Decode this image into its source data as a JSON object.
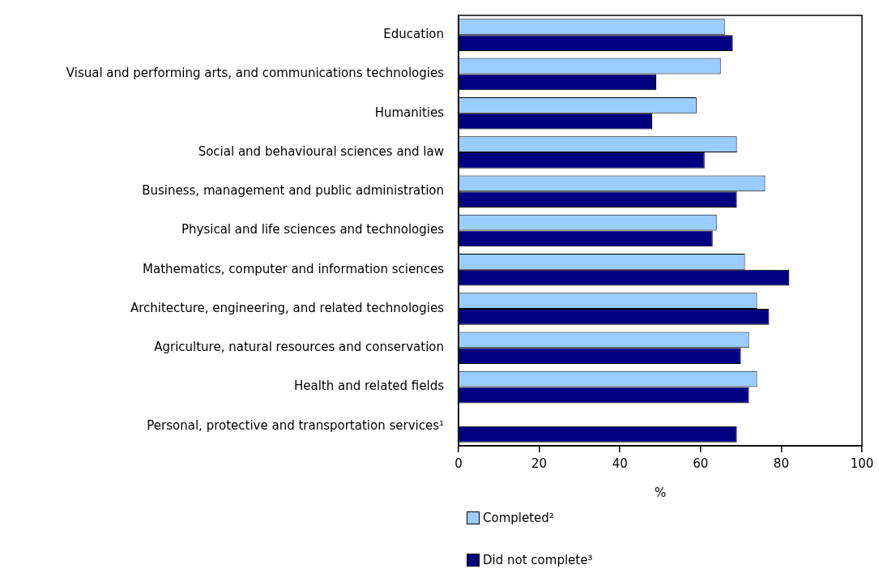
{
  "chart_data": {
    "type": "bar",
    "orientation": "horizontal",
    "xlabel": "%",
    "categories": [
      "Education",
      "Visual and performing arts, and communications technologies",
      "Humanities",
      "Social and behavioural sciences and law",
      "Business, management and public administration",
      "Physical and life sciences and technologies",
      "Mathematics, computer and information sciences",
      "Architecture, engineering, and related technologies",
      "Agriculture, natural resources and conservation",
      "Health and related fields",
      "Personal, protective and transportation services¹"
    ],
    "series": [
      {
        "name": "Completed²",
        "color": "#99ccff",
        "values": [
          66,
          65,
          59,
          69,
          76,
          64,
          71,
          74,
          72,
          74,
          null
        ]
      },
      {
        "name": "Did not complete³",
        "color": "#000080",
        "values": [
          68,
          49,
          48,
          61,
          69,
          63,
          82,
          77,
          70,
          72,
          69
        ]
      }
    ],
    "xlim": [
      0,
      100
    ],
    "xticks": [
      0,
      20,
      40,
      60,
      80,
      100
    ],
    "grid": false,
    "legend": "bottom"
  }
}
